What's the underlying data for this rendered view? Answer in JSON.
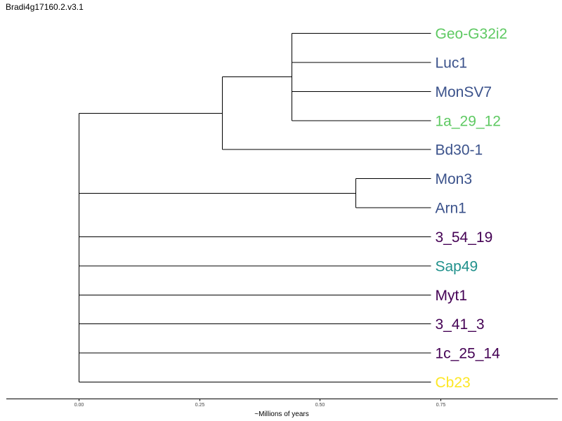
{
  "title": "Bradi4g17160.2.v3.1",
  "tree": {
    "leaves": [
      {
        "name": "Geo-G32i2",
        "color": "#5ec962"
      },
      {
        "name": "Luc1",
        "color": "#3b528b"
      },
      {
        "name": "MonSV7",
        "color": "#3b528b"
      },
      {
        "name": "1a_29_12",
        "color": "#5ec962"
      },
      {
        "name": "Bd30-1",
        "color": "#3b528b"
      },
      {
        "name": "Mon3",
        "color": "#3b528b"
      },
      {
        "name": "Arn1",
        "color": "#3b528b"
      },
      {
        "name": "3_54_19",
        "color": "#440154"
      },
      {
        "name": "Sap49",
        "color": "#21918c"
      },
      {
        "name": "Myt1",
        "color": "#440154"
      },
      {
        "name": "3_41_3",
        "color": "#440154"
      },
      {
        "name": "1c_25_14",
        "color": "#440154"
      },
      {
        "name": "Cb23",
        "color": "#fde725"
      }
    ],
    "leaf_age": 0.73,
    "internal_nodes": [
      {
        "id": "root",
        "age": 0.0,
        "children": [
          "n1",
          "n3",
          "3_54_19",
          "Sap49",
          "Myt1",
          "3_41_3",
          "1c_25_14",
          "Cb23"
        ]
      },
      {
        "id": "n1",
        "age": 0.298,
        "children": [
          "n2",
          "Bd30-1"
        ]
      },
      {
        "id": "n2",
        "age": 0.442,
        "children": [
          "Geo-G32i2",
          "Luc1",
          "MonSV7",
          "1a_29_12"
        ]
      },
      {
        "id": "n3",
        "age": 0.574,
        "children": [
          "Mon3",
          "Arn1"
        ]
      }
    ]
  },
  "axis": {
    "label": "~Millions of years",
    "ticks": [
      "0.00",
      "0.25",
      "0.50",
      "0.75"
    ],
    "tick_values": [
      0.0,
      0.25,
      0.5,
      0.75
    ],
    "range": [
      -0.15,
      1.0
    ]
  }
}
